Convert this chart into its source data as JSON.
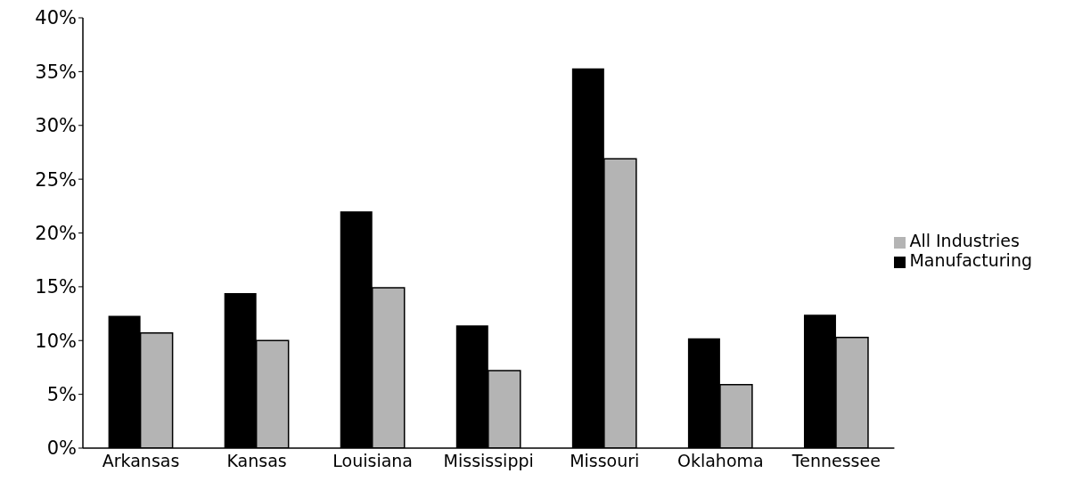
{
  "chart_data": {
    "type": "bar",
    "categories": [
      "Arkansas",
      "Kansas",
      "Louisiana",
      "Mississippi",
      "Missouri",
      "Oklahoma",
      "Tennessee"
    ],
    "series": [
      {
        "name": "Manufacturing",
        "color": "#000000",
        "values": [
          12.3,
          14.4,
          22.0,
          11.4,
          35.3,
          10.2,
          12.4
        ]
      },
      {
        "name": "All Industries",
        "color": "#b4b4b4",
        "values": [
          10.7,
          10.0,
          14.9,
          7.2,
          26.9,
          5.9,
          10.3
        ]
      }
    ],
    "ylim": [
      0,
      40
    ],
    "yticks": [
      {
        "value": 0,
        "label": "0%"
      },
      {
        "value": 5,
        "label": "5%"
      },
      {
        "value": 10,
        "label": "10%"
      },
      {
        "value": 15,
        "label": "15%"
      },
      {
        "value": 20,
        "label": "20%"
      },
      {
        "value": 25,
        "label": "25%"
      },
      {
        "value": 30,
        "label": "30%"
      },
      {
        "value": 35,
        "label": "35%"
      },
      {
        "value": 40,
        "label": "40%"
      }
    ],
    "grid": false,
    "legend": "right"
  }
}
